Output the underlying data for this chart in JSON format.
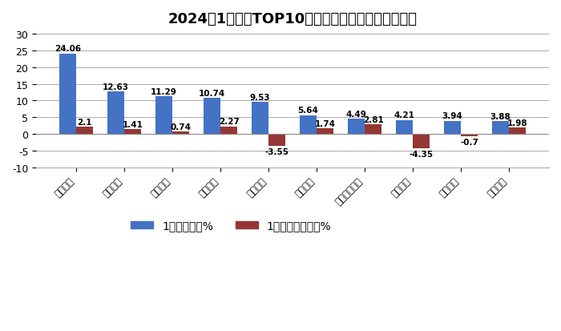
{
  "title": "2024年1月轻卡TOP10车企市场占比及占比同比增减",
  "categories": [
    "北汽福田",
    "江淮汽车",
    "重庆长安",
    "东风汽车",
    "长城汽车",
    "江铃汽车",
    "华晨鑫源汽车",
    "上汽大通",
    "中国重汽",
    "一汽解放"
  ],
  "market_share": [
    24.06,
    12.63,
    11.29,
    10.74,
    9.53,
    5.64,
    4.49,
    4.21,
    3.94,
    3.88
  ],
  "yoy_change": [
    2.1,
    1.41,
    0.74,
    2.27,
    -3.55,
    1.74,
    2.81,
    -4.35,
    -0.7,
    1.98
  ],
  "bar_color_blue": "#4472C4",
  "bar_color_red": "#963634",
  "ylim_min": -10,
  "ylim_max": 30,
  "yticks": [
    -10,
    -5,
    0,
    5,
    10,
    15,
    20,
    25,
    30
  ],
  "legend_label1": "1月市场份额%",
  "legend_label2": "1月份额同比增减%",
  "background_color": "#FFFFFF",
  "title_fontsize": 13,
  "bar_width": 0.35
}
